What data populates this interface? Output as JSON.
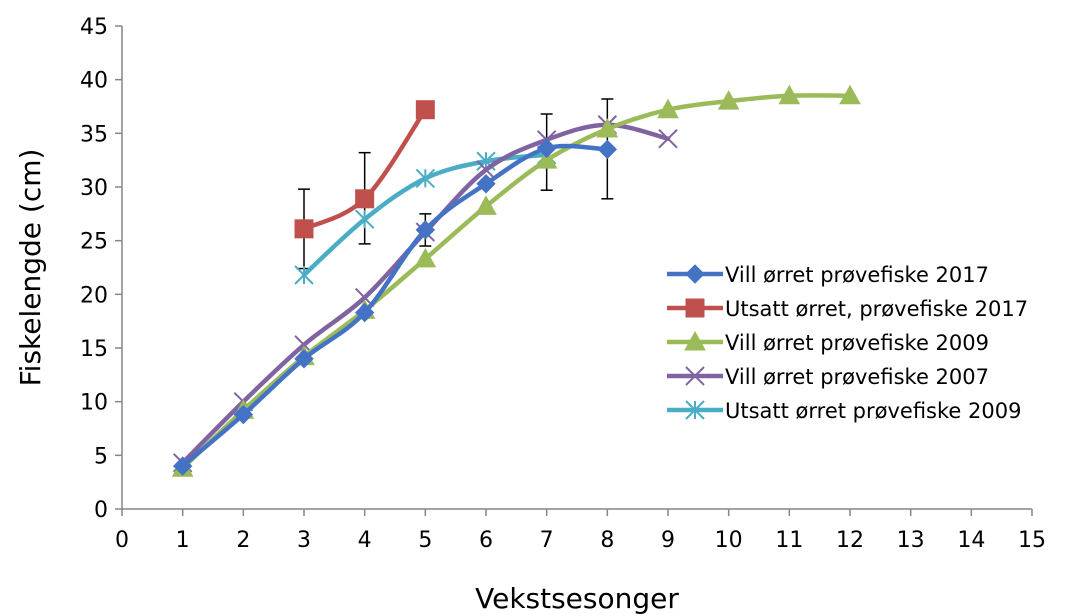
{
  "chart_data": {
    "type": "line",
    "title": "",
    "xlabel": "Vekstsesonger",
    "ylabel": "Fiskelengde (cm)",
    "xlim": [
      0,
      15
    ],
    "ylim": [
      0,
      45
    ],
    "x_ticks": [
      0,
      1,
      2,
      3,
      4,
      5,
      6,
      7,
      8,
      9,
      10,
      11,
      12,
      13,
      14,
      15
    ],
    "y_ticks": [
      0,
      5,
      10,
      15,
      20,
      25,
      30,
      35,
      40,
      45
    ],
    "grid": false,
    "legend_position": "right",
    "series": [
      {
        "name": "Vill ørret prøvefiske 2017",
        "color": "#4472C4",
        "marker": "diamond",
        "x": [
          1,
          2,
          3,
          4,
          5,
          6,
          7,
          8
        ],
        "y": [
          4.0,
          8.8,
          14.0,
          18.3,
          26.0,
          30.3,
          33.6,
          33.5
        ],
        "error_high": [
          null,
          null,
          null,
          null,
          27.5,
          null,
          36.8,
          38.2
        ],
        "error_low": [
          null,
          null,
          null,
          null,
          24.5,
          null,
          29.7,
          28.9
        ]
      },
      {
        "name": "Utsatt ørret, prøvefiske 2017",
        "color": "#C0504D",
        "marker": "square",
        "x": [
          3,
          4,
          5
        ],
        "y": [
          26.1,
          28.9,
          37.2
        ],
        "error_high": [
          29.8,
          33.2,
          null
        ],
        "error_low": [
          22.4,
          24.7,
          null
        ]
      },
      {
        "name": "Vill ørret prøvefiske 2009",
        "color": "#9BBB59",
        "marker": "triangle",
        "x": [
          1,
          2,
          3,
          4,
          5,
          6,
          7,
          8,
          9,
          10,
          11,
          12
        ],
        "y": [
          3.8,
          9.2,
          14.2,
          18.5,
          23.3,
          28.2,
          32.5,
          35.4,
          37.2,
          38.0,
          38.5,
          38.5
        ]
      },
      {
        "name": "Vill ørret prøvefiske 2007",
        "color": "#8064A2",
        "marker": "x",
        "x": [
          1,
          2,
          3,
          4,
          5,
          6,
          7,
          8,
          9
        ],
        "y": [
          4.3,
          10.0,
          15.3,
          19.7,
          25.8,
          31.6,
          34.4,
          35.8,
          34.5
        ]
      },
      {
        "name": "Utsatt ørret prøvefiske 2009",
        "color": "#4BACC6",
        "marker": "asterisk",
        "x": [
          3,
          4,
          5,
          6,
          7
        ],
        "y": [
          21.8,
          27.0,
          30.8,
          32.4,
          33.0
        ]
      }
    ]
  }
}
